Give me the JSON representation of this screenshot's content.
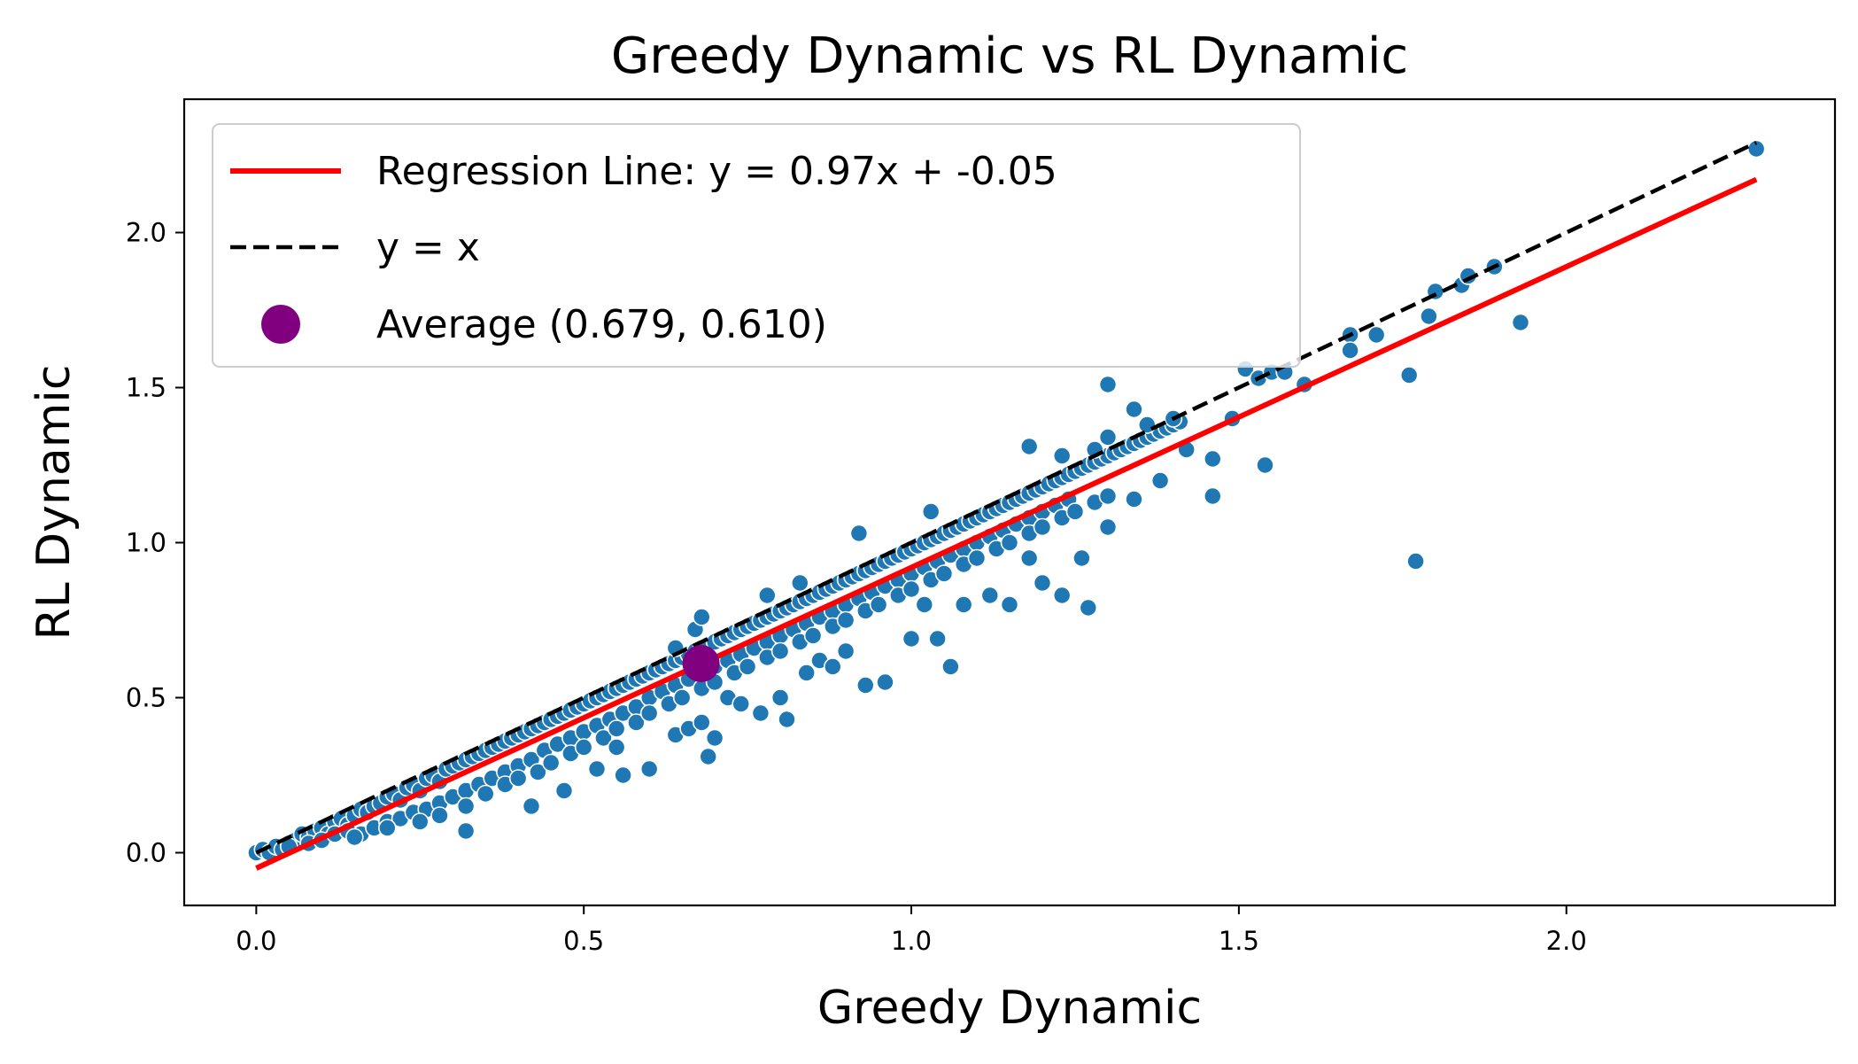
{
  "chart_data": {
    "type": "scatter",
    "title": "Greedy Dynamic vs RL Dynamic",
    "xlabel": "Greedy Dynamic",
    "ylabel": "RL Dynamic",
    "xlim": [
      -0.11,
      2.41
    ],
    "ylim": [
      -0.17,
      2.43
    ],
    "xticks": [
      "0.0",
      "0.5",
      "1.0",
      "1.5",
      "2.0"
    ],
    "yticks": [
      "0.0",
      "0.5",
      "1.0",
      "1.5",
      "2.0"
    ],
    "grid": false,
    "legend_position": "upper-left",
    "colors": {
      "points": "#1f77b4",
      "regression": "#ff0000",
      "identity": "#000000",
      "average": "#800080"
    },
    "legend": [
      {
        "label": "Regression Line: y = 0.97x + -0.05",
        "kind": "solid-line",
        "color": "#ff0000"
      },
      {
        "label": "y = x",
        "kind": "dashed-line",
        "color": "#000000"
      },
      {
        "label": "Average (0.679, 0.610)",
        "kind": "marker",
        "color": "#800080"
      }
    ],
    "regression": {
      "slope": 0.97,
      "intercept": -0.05,
      "x_range": [
        0.0,
        2.29
      ]
    },
    "identity_line": {
      "x_range": [
        0.0,
        2.29
      ]
    },
    "average_point": {
      "x": 0.679,
      "y": 0.61
    },
    "scatter_points": [
      [
        0.0,
        0.0
      ],
      [
        0.01,
        0.01
      ],
      [
        0.02,
        0.0
      ],
      [
        0.03,
        0.02
      ],
      [
        0.04,
        0.01
      ],
      [
        0.05,
        0.03
      ],
      [
        0.06,
        0.04
      ],
      [
        0.07,
        0.06
      ],
      [
        0.08,
        0.05
      ],
      [
        0.09,
        0.07
      ],
      [
        0.1,
        0.08
      ],
      [
        0.11,
        0.06
      ],
      [
        0.12,
        0.1
      ],
      [
        0.13,
        0.11
      ],
      [
        0.14,
        0.09
      ],
      [
        0.15,
        0.12
      ],
      [
        0.16,
        0.14
      ],
      [
        0.17,
        0.13
      ],
      [
        0.18,
        0.15
      ],
      [
        0.19,
        0.16
      ],
      [
        0.2,
        0.18
      ],
      [
        0.21,
        0.19
      ],
      [
        0.22,
        0.17
      ],
      [
        0.23,
        0.21
      ],
      [
        0.24,
        0.22
      ],
      [
        0.25,
        0.2
      ],
      [
        0.26,
        0.24
      ],
      [
        0.27,
        0.25
      ],
      [
        0.28,
        0.23
      ],
      [
        0.29,
        0.27
      ],
      [
        0.3,
        0.28
      ],
      [
        0.31,
        0.29
      ],
      [
        0.32,
        0.3
      ],
      [
        0.33,
        0.31
      ],
      [
        0.34,
        0.32
      ],
      [
        0.35,
        0.33
      ],
      [
        0.36,
        0.34
      ],
      [
        0.37,
        0.35
      ],
      [
        0.38,
        0.36
      ],
      [
        0.39,
        0.37
      ],
      [
        0.4,
        0.38
      ],
      [
        0.41,
        0.39
      ],
      [
        0.42,
        0.4
      ],
      [
        0.43,
        0.41
      ],
      [
        0.44,
        0.42
      ],
      [
        0.45,
        0.43
      ],
      [
        0.46,
        0.44
      ],
      [
        0.47,
        0.45
      ],
      [
        0.48,
        0.46
      ],
      [
        0.49,
        0.47
      ],
      [
        0.5,
        0.48
      ],
      [
        0.51,
        0.49
      ],
      [
        0.52,
        0.5
      ],
      [
        0.53,
        0.51
      ],
      [
        0.54,
        0.52
      ],
      [
        0.55,
        0.53
      ],
      [
        0.56,
        0.54
      ],
      [
        0.57,
        0.55
      ],
      [
        0.58,
        0.56
      ],
      [
        0.59,
        0.57
      ],
      [
        0.6,
        0.58
      ],
      [
        0.61,
        0.59
      ],
      [
        0.62,
        0.6
      ],
      [
        0.63,
        0.61
      ],
      [
        0.64,
        0.62
      ],
      [
        0.65,
        0.63
      ],
      [
        0.66,
        0.64
      ],
      [
        0.67,
        0.65
      ],
      [
        0.68,
        0.66
      ],
      [
        0.69,
        0.67
      ],
      [
        0.7,
        0.68
      ],
      [
        0.71,
        0.69
      ],
      [
        0.72,
        0.7
      ],
      [
        0.73,
        0.71
      ],
      [
        0.74,
        0.72
      ],
      [
        0.75,
        0.73
      ],
      [
        0.76,
        0.74
      ],
      [
        0.77,
        0.75
      ],
      [
        0.78,
        0.76
      ],
      [
        0.79,
        0.77
      ],
      [
        0.8,
        0.78
      ],
      [
        0.81,
        0.79
      ],
      [
        0.82,
        0.8
      ],
      [
        0.83,
        0.81
      ],
      [
        0.84,
        0.82
      ],
      [
        0.85,
        0.83
      ],
      [
        0.86,
        0.84
      ],
      [
        0.87,
        0.85
      ],
      [
        0.88,
        0.86
      ],
      [
        0.89,
        0.87
      ],
      [
        0.9,
        0.88
      ],
      [
        0.91,
        0.89
      ],
      [
        0.92,
        0.9
      ],
      [
        0.93,
        0.91
      ],
      [
        0.94,
        0.92
      ],
      [
        0.95,
        0.93
      ],
      [
        0.96,
        0.94
      ],
      [
        0.97,
        0.95
      ],
      [
        0.98,
        0.96
      ],
      [
        0.99,
        0.97
      ],
      [
        1.0,
        0.98
      ],
      [
        1.01,
        0.99
      ],
      [
        1.02,
        1.0
      ],
      [
        1.03,
        1.01
      ],
      [
        1.04,
        1.02
      ],
      [
        1.05,
        1.03
      ],
      [
        1.06,
        1.04
      ],
      [
        1.07,
        1.05
      ],
      [
        1.08,
        1.06
      ],
      [
        1.09,
        1.07
      ],
      [
        1.1,
        1.08
      ],
      [
        1.11,
        1.09
      ],
      [
        1.12,
        1.1
      ],
      [
        1.13,
        1.11
      ],
      [
        1.14,
        1.12
      ],
      [
        1.15,
        1.13
      ],
      [
        1.16,
        1.14
      ],
      [
        1.17,
        1.15
      ],
      [
        1.18,
        1.16
      ],
      [
        1.19,
        1.17
      ],
      [
        1.2,
        1.18
      ],
      [
        1.21,
        1.19
      ],
      [
        1.22,
        1.2
      ],
      [
        1.23,
        1.21
      ],
      [
        1.24,
        1.22
      ],
      [
        1.25,
        1.23
      ],
      [
        1.26,
        1.24
      ],
      [
        1.27,
        1.25
      ],
      [
        1.28,
        1.26
      ],
      [
        1.29,
        1.27
      ],
      [
        1.3,
        1.28
      ],
      [
        1.31,
        1.29
      ],
      [
        1.32,
        1.3
      ],
      [
        1.33,
        1.31
      ],
      [
        1.34,
        1.32
      ],
      [
        1.35,
        1.33
      ],
      [
        1.36,
        1.34
      ],
      [
        1.37,
        1.35
      ],
      [
        1.38,
        1.36
      ],
      [
        1.39,
        1.37
      ],
      [
        1.4,
        1.38
      ],
      [
        1.41,
        1.39
      ],
      [
        0.05,
        0.02
      ],
      [
        0.08,
        0.03
      ],
      [
        0.1,
        0.04
      ],
      [
        0.12,
        0.06
      ],
      [
        0.14,
        0.07
      ],
      [
        0.16,
        0.06
      ],
      [
        0.18,
        0.08
      ],
      [
        0.2,
        0.1
      ],
      [
        0.22,
        0.11
      ],
      [
        0.24,
        0.13
      ],
      [
        0.26,
        0.14
      ],
      [
        0.28,
        0.16
      ],
      [
        0.3,
        0.18
      ],
      [
        0.32,
        0.2
      ],
      [
        0.34,
        0.22
      ],
      [
        0.36,
        0.24
      ],
      [
        0.38,
        0.26
      ],
      [
        0.4,
        0.28
      ],
      [
        0.42,
        0.3
      ],
      [
        0.44,
        0.33
      ],
      [
        0.46,
        0.35
      ],
      [
        0.48,
        0.37
      ],
      [
        0.5,
        0.39
      ],
      [
        0.52,
        0.41
      ],
      [
        0.54,
        0.43
      ],
      [
        0.56,
        0.45
      ],
      [
        0.58,
        0.47
      ],
      [
        0.6,
        0.5
      ],
      [
        0.62,
        0.52
      ],
      [
        0.64,
        0.54
      ],
      [
        0.66,
        0.56
      ],
      [
        0.68,
        0.58
      ],
      [
        0.7,
        0.6
      ],
      [
        0.72,
        0.62
      ],
      [
        0.74,
        0.64
      ],
      [
        0.76,
        0.66
      ],
      [
        0.78,
        0.68
      ],
      [
        0.8,
        0.7
      ],
      [
        0.82,
        0.72
      ],
      [
        0.84,
        0.74
      ],
      [
        0.86,
        0.76
      ],
      [
        0.88,
        0.78
      ],
      [
        0.9,
        0.8
      ],
      [
        0.92,
        0.82
      ],
      [
        0.94,
        0.84
      ],
      [
        0.96,
        0.86
      ],
      [
        0.98,
        0.88
      ],
      [
        1.0,
        0.9
      ],
      [
        1.02,
        0.92
      ],
      [
        1.04,
        0.94
      ],
      [
        1.06,
        0.96
      ],
      [
        1.08,
        0.98
      ],
      [
        1.1,
        1.0
      ],
      [
        1.12,
        1.02
      ],
      [
        1.14,
        1.04
      ],
      [
        1.16,
        1.06
      ],
      [
        1.18,
        1.08
      ],
      [
        1.2,
        1.1
      ],
      [
        1.22,
        1.12
      ],
      [
        1.24,
        1.14
      ],
      [
        0.15,
        0.05
      ],
      [
        0.2,
        0.08
      ],
      [
        0.25,
        0.1
      ],
      [
        0.28,
        0.12
      ],
      [
        0.32,
        0.15
      ],
      [
        0.35,
        0.19
      ],
      [
        0.38,
        0.22
      ],
      [
        0.4,
        0.24
      ],
      [
        0.43,
        0.26
      ],
      [
        0.45,
        0.29
      ],
      [
        0.48,
        0.32
      ],
      [
        0.5,
        0.34
      ],
      [
        0.53,
        0.37
      ],
      [
        0.55,
        0.4
      ],
      [
        0.58,
        0.42
      ],
      [
        0.6,
        0.45
      ],
      [
        0.63,
        0.48
      ],
      [
        0.65,
        0.5
      ],
      [
        0.68,
        0.53
      ],
      [
        0.7,
        0.55
      ],
      [
        0.73,
        0.58
      ],
      [
        0.75,
        0.6
      ],
      [
        0.78,
        0.63
      ],
      [
        0.8,
        0.65
      ],
      [
        0.83,
        0.68
      ],
      [
        0.85,
        0.7
      ],
      [
        0.88,
        0.73
      ],
      [
        0.9,
        0.75
      ],
      [
        0.93,
        0.78
      ],
      [
        0.95,
        0.8
      ],
      [
        0.98,
        0.83
      ],
      [
        1.0,
        0.85
      ],
      [
        1.03,
        0.88
      ],
      [
        1.05,
        0.9
      ],
      [
        1.08,
        0.93
      ],
      [
        1.1,
        0.95
      ],
      [
        1.13,
        0.98
      ],
      [
        1.15,
        1.0
      ],
      [
        1.18,
        1.03
      ],
      [
        1.2,
        1.05
      ],
      [
        1.23,
        1.08
      ],
      [
        1.25,
        1.1
      ],
      [
        1.28,
        1.13
      ],
      [
        1.3,
        1.15
      ],
      [
        0.32,
        0.07
      ],
      [
        0.42,
        0.15
      ],
      [
        0.47,
        0.2
      ],
      [
        0.52,
        0.27
      ],
      [
        0.55,
        0.34
      ],
      [
        0.56,
        0.25
      ],
      [
        0.6,
        0.27
      ],
      [
        0.64,
        0.38
      ],
      [
        0.66,
        0.4
      ],
      [
        0.68,
        0.42
      ],
      [
        0.69,
        0.31
      ],
      [
        0.7,
        0.37
      ],
      [
        0.72,
        0.5
      ],
      [
        0.74,
        0.48
      ],
      [
        0.77,
        0.45
      ],
      [
        0.8,
        0.5
      ],
      [
        0.81,
        0.43
      ],
      [
        0.84,
        0.58
      ],
      [
        0.86,
        0.62
      ],
      [
        0.88,
        0.6
      ],
      [
        0.9,
        0.65
      ],
      [
        0.93,
        0.54
      ],
      [
        0.96,
        0.55
      ],
      [
        1.0,
        0.69
      ],
      [
        1.02,
        0.8
      ],
      [
        1.04,
        0.69
      ],
      [
        1.06,
        0.6
      ],
      [
        1.08,
        0.8
      ],
      [
        1.12,
        0.83
      ],
      [
        1.15,
        0.8
      ],
      [
        1.18,
        0.95
      ],
      [
        1.2,
        0.87
      ],
      [
        1.23,
        0.83
      ],
      [
        1.26,
        0.95
      ],
      [
        1.27,
        0.79
      ],
      [
        1.3,
        1.05
      ],
      [
        1.34,
        1.14
      ],
      [
        1.38,
        1.2
      ],
      [
        1.42,
        1.3
      ],
      [
        1.46,
        1.27
      ],
      [
        1.46,
        1.15
      ],
      [
        1.49,
        1.4
      ],
      [
        1.54,
        1.25
      ],
      [
        0.64,
        0.66
      ],
      [
        0.67,
        0.72
      ],
      [
        0.68,
        0.76
      ],
      [
        0.78,
        0.83
      ],
      [
        0.83,
        0.87
      ],
      [
        0.92,
        1.03
      ],
      [
        1.03,
        1.1
      ],
      [
        1.18,
        1.31
      ],
      [
        1.23,
        1.28
      ],
      [
        1.28,
        1.3
      ],
      [
        1.3,
        1.34
      ],
      [
        1.3,
        1.51
      ],
      [
        1.34,
        1.43
      ],
      [
        1.36,
        1.38
      ],
      [
        1.4,
        1.4
      ],
      [
        1.51,
        1.56
      ],
      [
        1.53,
        1.53
      ],
      [
        1.55,
        1.55
      ],
      [
        1.57,
        1.55
      ],
      [
        1.6,
        1.51
      ],
      [
        1.67,
        1.67
      ],
      [
        1.67,
        1.62
      ],
      [
        1.71,
        1.67
      ],
      [
        1.76,
        1.54
      ],
      [
        1.77,
        0.94
      ],
      [
        1.79,
        1.73
      ],
      [
        1.8,
        1.81
      ],
      [
        1.84,
        1.83
      ],
      [
        1.85,
        1.86
      ],
      [
        1.89,
        1.89
      ],
      [
        1.93,
        1.71
      ],
      [
        2.29,
        2.27
      ]
    ]
  }
}
